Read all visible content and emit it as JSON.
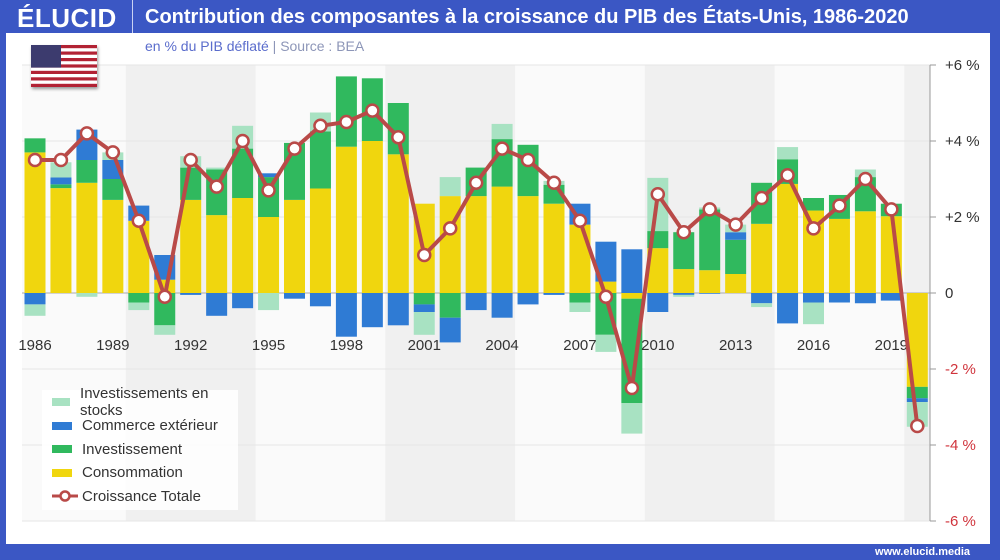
{
  "header": {
    "logo": "ÉLUCID",
    "title": "Contribution des composantes à la croissance du PIB des États-Unis, 1986-2020"
  },
  "subtitle": {
    "unit": "en % du PIB déflaté",
    "separator": "|",
    "source": "Source : BEA"
  },
  "footer": {
    "url": "www.elucid.media"
  },
  "flag_icon": "us-flag",
  "colors": {
    "stocks": "#a8e2c2",
    "commerce": "#2f7bd4",
    "investissement": "#30b95e",
    "consommation": "#f0d60e",
    "croissance": "#b94a48",
    "frame": "#3b57c4",
    "negative_tick": "#d0343c"
  },
  "chart_data": {
    "type": "bar",
    "stacked": true,
    "title": "Contribution des composantes à la croissance du PIB des États-Unis, 1986-2020",
    "subtitle": "en % du PIB déflaté",
    "ylim": [
      -6,
      6
    ],
    "yticks": [
      6,
      4,
      2,
      0,
      -2,
      -4,
      -6
    ],
    "ytick_labels": [
      "+6 %",
      "+4 %",
      "+2 %",
      "0",
      "-2 %",
      "-4 %",
      "-6 %"
    ],
    "xtick_labels": [
      "1986",
      "1989",
      "1992",
      "1995",
      "1998",
      "2001",
      "2004",
      "2007",
      "2010",
      "2013",
      "2016",
      "2019"
    ],
    "grid": true,
    "legend_position": "bottom-left",
    "categories": [
      1986,
      1987,
      1988,
      1989,
      1990,
      1991,
      1992,
      1993,
      1994,
      1995,
      1996,
      1997,
      1998,
      1999,
      2000,
      2001,
      2002,
      2003,
      2004,
      2005,
      2006,
      2007,
      2008,
      2009,
      2010,
      2011,
      2012,
      2013,
      2014,
      2015,
      2016,
      2017,
      2018,
      2019,
      2020
    ],
    "series": [
      {
        "name": "Consommation",
        "key": "consommation",
        "values": [
          3.7,
          2.76,
          2.9,
          2.45,
          1.9,
          0.35,
          2.45,
          2.05,
          2.5,
          2.0,
          2.45,
          2.75,
          3.85,
          4.0,
          3.65,
          2.35,
          2.55,
          2.55,
          2.8,
          2.55,
          2.35,
          1.8,
          0.3,
          -0.15,
          1.18,
          0.63,
          0.6,
          0.5,
          1.82,
          2.87,
          2.17,
          1.95,
          2.15,
          2.02,
          -2.47
        ]
      },
      {
        "name": "Investissement",
        "key": "investissement",
        "values": [
          0.37,
          0.1,
          0.6,
          0.55,
          -0.25,
          -0.85,
          0.85,
          1.2,
          1.3,
          1.05,
          1.5,
          1.5,
          1.85,
          1.65,
          1.35,
          -0.3,
          -0.65,
          0.75,
          1.25,
          1.35,
          0.5,
          -0.25,
          -1.1,
          -2.75,
          0.45,
          0.97,
          1.6,
          0.9,
          1.08,
          0.65,
          0.33,
          0.63,
          0.9,
          0.33,
          -0.3
        ]
      },
      {
        "name": "Commerce extérieur",
        "key": "commerce",
        "values": [
          -0.3,
          0.18,
          0.8,
          0.5,
          0.4,
          0.65,
          -0.05,
          -0.6,
          -0.4,
          0.1,
          -0.15,
          -0.35,
          -1.15,
          -0.9,
          -0.85,
          -0.2,
          -0.65,
          -0.45,
          -0.65,
          -0.3,
          -0.05,
          0.55,
          1.05,
          1.15,
          -0.5,
          -0.05,
          -0.02,
          0.2,
          -0.27,
          -0.8,
          -0.25,
          -0.25,
          -0.27,
          -0.2,
          -0.1
        ]
      },
      {
        "name": "Investissements en stocks",
        "key": "stocks",
        "values": [
          -0.3,
          0.4,
          -0.1,
          0.2,
          -0.2,
          -0.25,
          0.3,
          0.05,
          0.6,
          -0.45,
          0.0,
          0.5,
          0.0,
          0.0,
          0.0,
          -0.6,
          0.5,
          0.0,
          0.4,
          0.0,
          0.1,
          -0.25,
          -0.45,
          -0.8,
          1.4,
          -0.05,
          0.05,
          0.2,
          -0.1,
          0.32,
          -0.57,
          0.0,
          0.2,
          0.0,
          -0.65
        ]
      },
      {
        "name": "Croissance Totale",
        "key": "croissance",
        "type": "line",
        "values": [
          3.5,
          3.5,
          4.2,
          3.7,
          1.9,
          -0.1,
          3.5,
          2.8,
          4.0,
          2.7,
          3.8,
          4.4,
          4.5,
          4.8,
          4.1,
          1.0,
          1.7,
          2.9,
          3.8,
          3.5,
          2.9,
          1.9,
          -0.1,
          -2.5,
          2.6,
          1.6,
          2.2,
          1.8,
          2.5,
          3.1,
          1.7,
          2.3,
          3.0,
          2.2,
          -3.5
        ]
      }
    ],
    "shaded_periods": [
      [
        1990,
        1994
      ],
      [
        2000,
        2004
      ],
      [
        2010,
        2014
      ],
      [
        2020,
        2020
      ]
    ]
  }
}
